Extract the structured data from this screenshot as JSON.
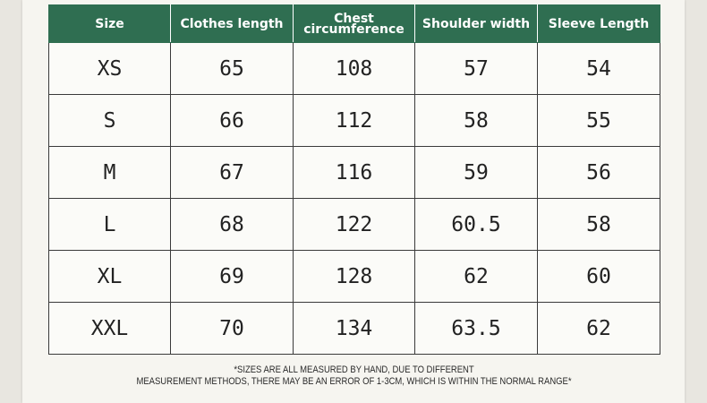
{
  "table": {
    "headers": {
      "size": "Size",
      "clothes_length": "Clothes length",
      "chest_line1": "Chest",
      "chest_line2": "circumference",
      "shoulder_width": "Shoulder width",
      "sleeve_length": "Sleeve Length"
    },
    "rows": [
      {
        "size": "XS",
        "clothes_length": "65",
        "chest": "108",
        "shoulder": "57",
        "sleeve": "54"
      },
      {
        "size": "S",
        "clothes_length": "66",
        "chest": "112",
        "shoulder": "58",
        "sleeve": "55"
      },
      {
        "size": "M",
        "clothes_length": "67",
        "chest": "116",
        "shoulder": "59",
        "sleeve": "56"
      },
      {
        "size": "L",
        "clothes_length": "68",
        "chest": "122",
        "shoulder": "60.5",
        "sleeve": "58"
      },
      {
        "size": "XL",
        "clothes_length": "69",
        "chest": "128",
        "shoulder": "62",
        "sleeve": "60"
      },
      {
        "size": "XXL",
        "clothes_length": "70",
        "chest": "134",
        "shoulder": "63.5",
        "sleeve": "62"
      }
    ]
  },
  "note": {
    "line1": "*SIZES ARE ALL MEASURED BY HAND, DUE TO DIFFERENT",
    "line2": "MEASUREMENT METHODS, THERE MAY BE AN ERROR OF 1-3CM, WHICH IS WITHIN THE NORMAL RANGE*"
  },
  "colors": {
    "header_bg": "#2f6e51",
    "header_text": "#ffffff",
    "cell_text": "#222222"
  }
}
